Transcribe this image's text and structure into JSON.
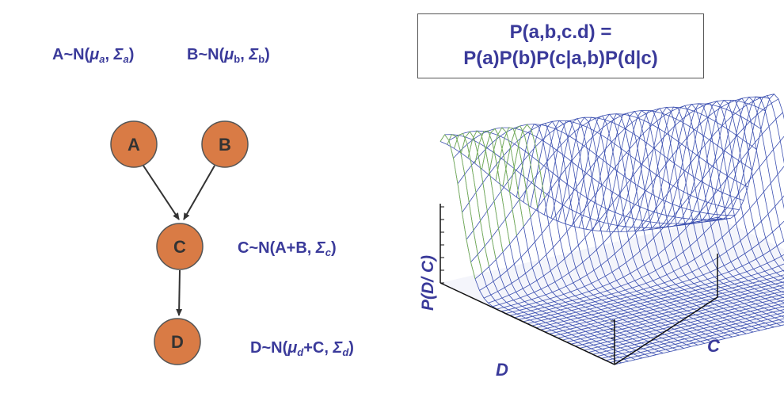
{
  "equations": {
    "a": {
      "prefix": "A~N(",
      "mu": "μ",
      "mu_sub": "a",
      "sep": ", ",
      "sigma": "Σ",
      "sigma_sub": "a",
      "close": ")"
    },
    "b": {
      "prefix": "B~N(",
      "mu": "μ",
      "mu_sub": "b",
      "sep": ", ",
      "sigma": "Σ",
      "sigma_sub": "b",
      "close": ")"
    },
    "c": {
      "prefix": "C~N(A+B, ",
      "sigma": "Σ",
      "sigma_sub": "c",
      "close": ")"
    },
    "d": {
      "prefix": "D~N(",
      "mu": "μ",
      "mu_sub": "d",
      "mid": "+C, ",
      "sigma": "Σ",
      "sigma_sub": "d",
      "close": ")"
    }
  },
  "joint": {
    "line1": "P(a,b,c.d) =",
    "line2": "P(a)P(b)P(c|a,b)P(d|c)"
  },
  "nodes": {
    "a": "A",
    "b": "B",
    "c": "C",
    "d": "D"
  },
  "plot": {
    "z_label": "P(D/ C)",
    "x_label": "D",
    "y_label": "C"
  },
  "colors": {
    "text": "#3a3a9a",
    "node_fill": "#d97b45",
    "node_stroke": "#555555",
    "mesh_blue": "#3b4fb0",
    "mesh_green": "#7ab84a"
  }
}
